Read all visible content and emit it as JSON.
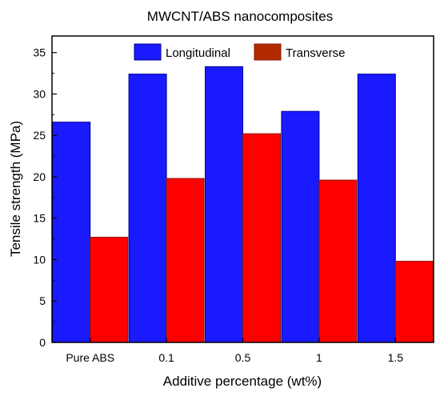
{
  "chart_data": {
    "type": "bar",
    "title": "MWCNT/ABS nanocomposites",
    "xlabel": "Additive percentage (wt%)",
    "ylabel": "Tensile strength (MPa)",
    "categories": [
      "Pure ABS",
      "0.1",
      "0.5",
      "1",
      "1.5"
    ],
    "series": [
      {
        "name": "Longitudinal",
        "values": [
          26.6,
          32.4,
          33.3,
          27.9,
          32.4
        ],
        "color": "#1a1aff",
        "stroke": "#000099"
      },
      {
        "name": "Transverse",
        "values": [
          12.7,
          19.8,
          25.2,
          19.6,
          9.8
        ],
        "color": "#ff0000",
        "stroke": "#8b1a00",
        "legend_color": "#b22a00"
      }
    ],
    "ylim": [
      0,
      37
    ],
    "yticks": [
      0,
      5,
      10,
      15,
      20,
      25,
      30,
      35
    ],
    "legend_position": "top",
    "grid": false
  }
}
